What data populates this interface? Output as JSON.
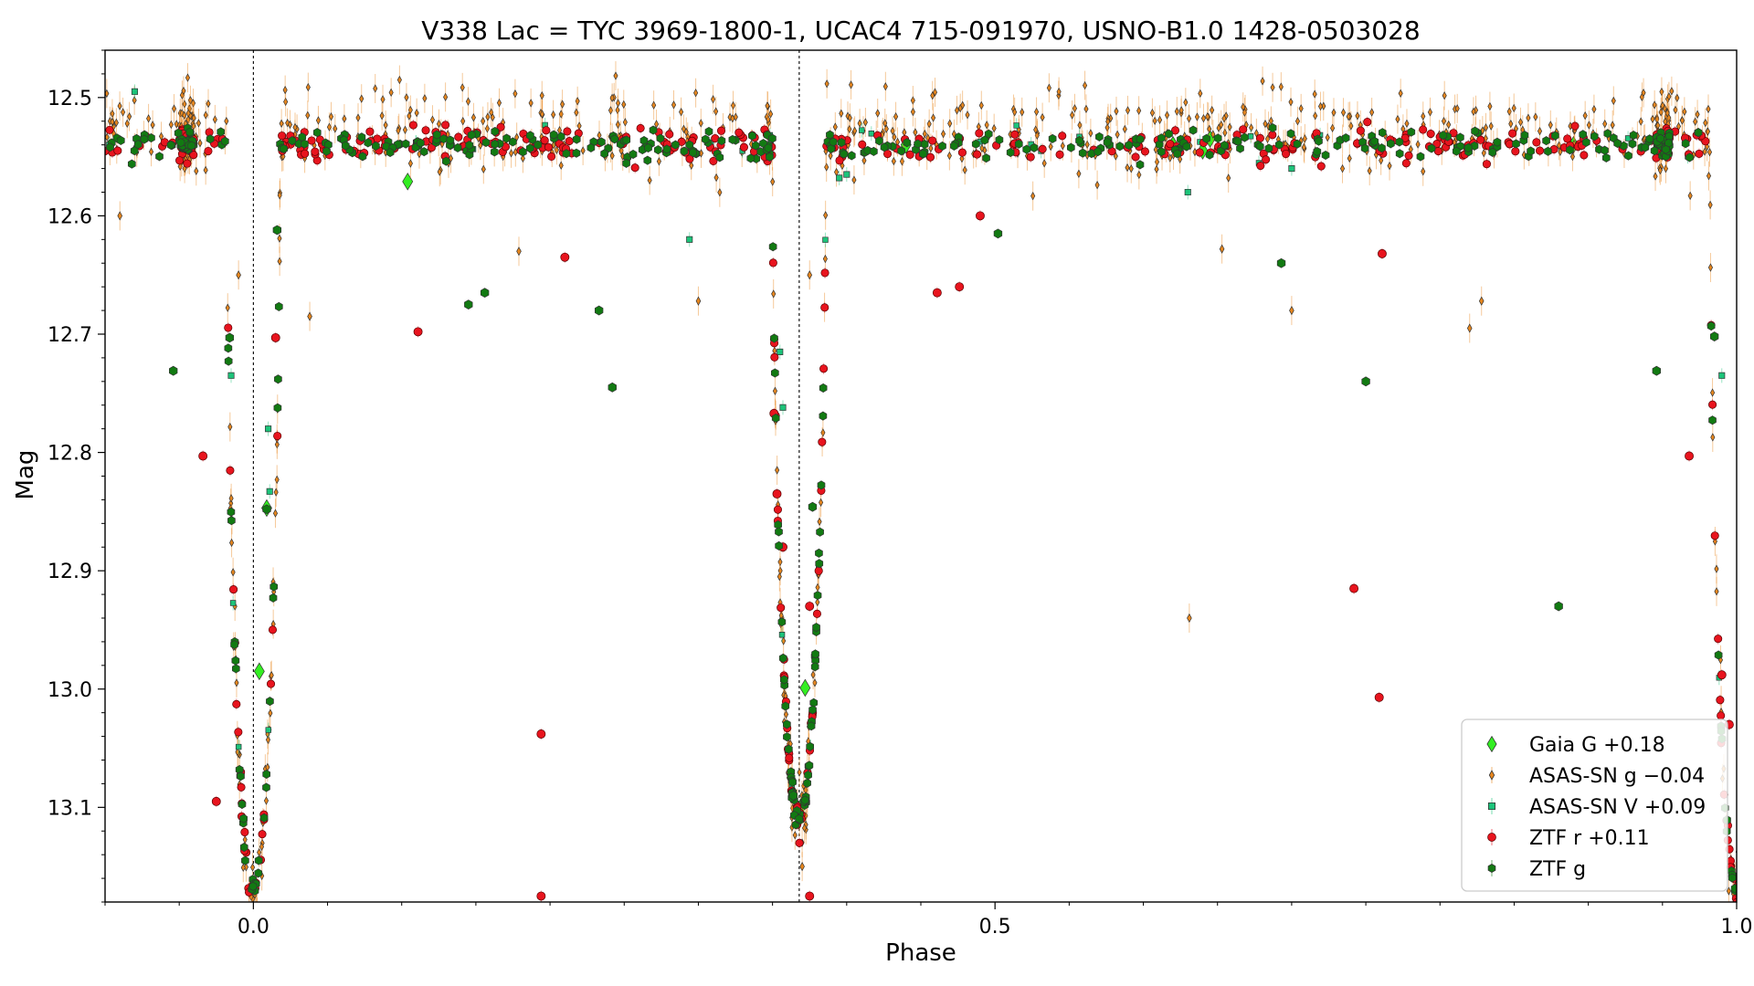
{
  "chart_data": {
    "type": "scatter",
    "title": "V338 Lac = TYC 3969-1800-1, UCAC4 715-091970, USNO-B1.0 1428-0503028",
    "xlabel": "Phase",
    "ylabel": "Mag",
    "xlim": [
      -0.1,
      1.0
    ],
    "ylim": [
      13.18,
      12.46
    ],
    "y_inverted": true,
    "x_major_ticks": [
      0.0,
      0.5,
      1.0
    ],
    "x_tick_labels": [
      "0.0",
      "0.5",
      "1.0"
    ],
    "y_major_ticks": [
      12.5,
      12.6,
      12.7,
      12.8,
      12.9,
      13.0,
      13.1
    ],
    "y_tick_labels": [
      "12.5",
      "12.6",
      "12.7",
      "12.8",
      "12.9",
      "13.0",
      "13.1"
    ],
    "vertical_lines": [
      0.0,
      0.368
    ],
    "legend_position": "lower-right",
    "grid": false,
    "baseline_mag": 12.54,
    "eclipses": [
      {
        "phase": 0.0,
        "depth_mag": 13.17,
        "half_width": 0.018
      },
      {
        "phase": 0.368,
        "depth_mag": 13.11,
        "half_width": 0.018
      }
    ],
    "series": [
      {
        "name": "Gaia G +0.18",
        "marker": "diamond",
        "color": "#33ee22",
        "points": [
          [
            0.004,
            12.985
          ],
          [
            0.009,
            12.847
          ],
          [
            0.104,
            12.571
          ],
          [
            0.369,
            13.1
          ],
          [
            0.372,
            12.999
          ],
          [
            0.44,
            12.54
          ],
          [
            0.62,
            12.54
          ],
          [
            0.64,
            12.545
          ],
          [
            0.645,
            12.535
          ],
          [
            0.89,
            12.54
          ]
        ]
      },
      {
        "name": "ASAS-SN g −0.04",
        "marker": "thin-diamond",
        "color": "#e8871e",
        "points": [
          [
            -0.09,
            12.6
          ],
          [
            -0.01,
            12.65
          ],
          [
            0.038,
            12.685
          ],
          [
            0.179,
            12.63
          ],
          [
            0.3,
            12.672
          ],
          [
            0.37,
            13.15
          ],
          [
            0.375,
            12.65
          ],
          [
            0.631,
            12.94
          ],
          [
            0.653,
            12.628
          ],
          [
            0.7,
            12.68
          ],
          [
            0.82,
            12.695
          ],
          [
            0.828,
            12.672
          ]
        ]
      },
      {
        "name": "ASAS-SN V +0.09",
        "marker": "square",
        "color": "#1cc47a",
        "points": [
          [
            -0.08,
            12.495
          ],
          [
            -0.02,
            12.538
          ],
          [
            -0.015,
            12.735
          ],
          [
            0.01,
            12.78
          ],
          [
            0.011,
            12.833
          ],
          [
            0.294,
            12.62
          ],
          [
            0.355,
            12.715
          ],
          [
            0.357,
            12.762
          ],
          [
            0.395,
            12.568
          ],
          [
            0.4,
            12.565
          ],
          [
            0.63,
            12.58
          ],
          [
            0.7,
            12.56
          ],
          [
            0.99,
            12.735
          ],
          [
            1.0,
            13.16
          ]
        ]
      },
      {
        "name": "ZTF r +0.11",
        "marker": "circle",
        "color": "#e8141e",
        "points": [
          [
            -0.034,
            12.803
          ],
          [
            -0.025,
            13.095
          ],
          [
            0.015,
            12.703
          ],
          [
            0.111,
            12.698
          ],
          [
            0.194,
            13.038
          ],
          [
            0.21,
            12.635
          ],
          [
            0.194,
            13.175
          ],
          [
            0.351,
            12.767
          ],
          [
            0.353,
            12.835
          ],
          [
            0.357,
            12.88
          ],
          [
            0.375,
            12.93
          ],
          [
            0.375,
            13.175
          ],
          [
            0.461,
            12.665
          ],
          [
            0.476,
            12.66
          ],
          [
            0.49,
            12.6
          ],
          [
            0.742,
            12.915
          ],
          [
            0.759,
            13.007
          ],
          [
            0.761,
            12.632
          ],
          [
            0.968,
            12.803
          ],
          [
            0.99,
            12.988
          ],
          [
            0.995,
            13.03
          ]
        ]
      },
      {
        "name": "ZTF g",
        "marker": "hexagon",
        "color": "#127a12",
        "points": [
          [
            -0.054,
            12.731
          ],
          [
            -0.016,
            12.703
          ],
          [
            0.009,
            12.848
          ],
          [
            0.016,
            12.612
          ],
          [
            0.145,
            12.675
          ],
          [
            0.156,
            12.665
          ],
          [
            0.233,
            12.68
          ],
          [
            0.242,
            12.745
          ],
          [
            0.364,
            13.09
          ],
          [
            0.377,
            12.846
          ],
          [
            0.502,
            12.615
          ],
          [
            0.693,
            12.64
          ],
          [
            0.75,
            12.74
          ],
          [
            0.88,
            12.93
          ],
          [
            0.946,
            12.731
          ],
          [
            0.985,
            12.702
          ]
        ]
      }
    ]
  }
}
